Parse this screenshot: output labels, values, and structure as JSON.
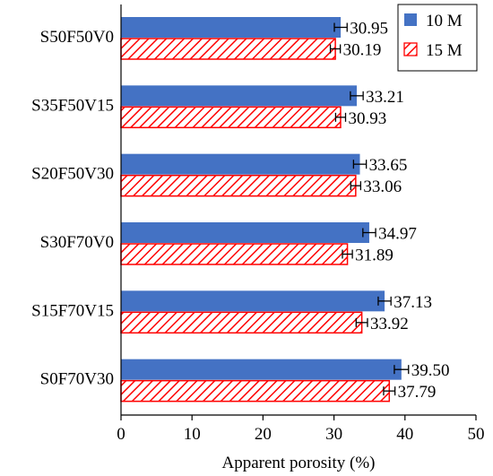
{
  "chart_data": {
    "type": "bar",
    "orientation": "horizontal",
    "categories": [
      "S50F50V0",
      "S35F50V15",
      "S20F50V30",
      "S30F70V0",
      "S15F70V15",
      "S0F70V30"
    ],
    "series": [
      {
        "name": "10 M",
        "values": [
          30.95,
          33.21,
          33.65,
          34.97,
          37.13,
          39.5
        ],
        "value_labels": [
          "30.95",
          "33.21",
          "33.65",
          "34.97",
          "37.13",
          "39.50"
        ],
        "errors": [
          0.9,
          0.9,
          0.9,
          0.9,
          0.9,
          1.0
        ],
        "color": "#4472c4",
        "fill": "solid"
      },
      {
        "name": "15 M",
        "values": [
          30.19,
          30.93,
          33.06,
          31.89,
          33.92,
          37.79
        ],
        "value_labels": [
          "30.19",
          "30.93",
          "33.06",
          "31.89",
          "33.92",
          "37.79"
        ],
        "errors": [
          0.7,
          0.7,
          0.7,
          0.7,
          0.8,
          0.8
        ],
        "color": "#ff0000",
        "fill": "diagonal-hatch"
      }
    ],
    "xlabel": "Apparent porosity (%)",
    "ylabel": "",
    "xlim": [
      0,
      50
    ],
    "xticks": [
      0,
      10,
      20,
      30,
      40,
      50
    ],
    "grid": false,
    "legend_position": "top-right"
  }
}
